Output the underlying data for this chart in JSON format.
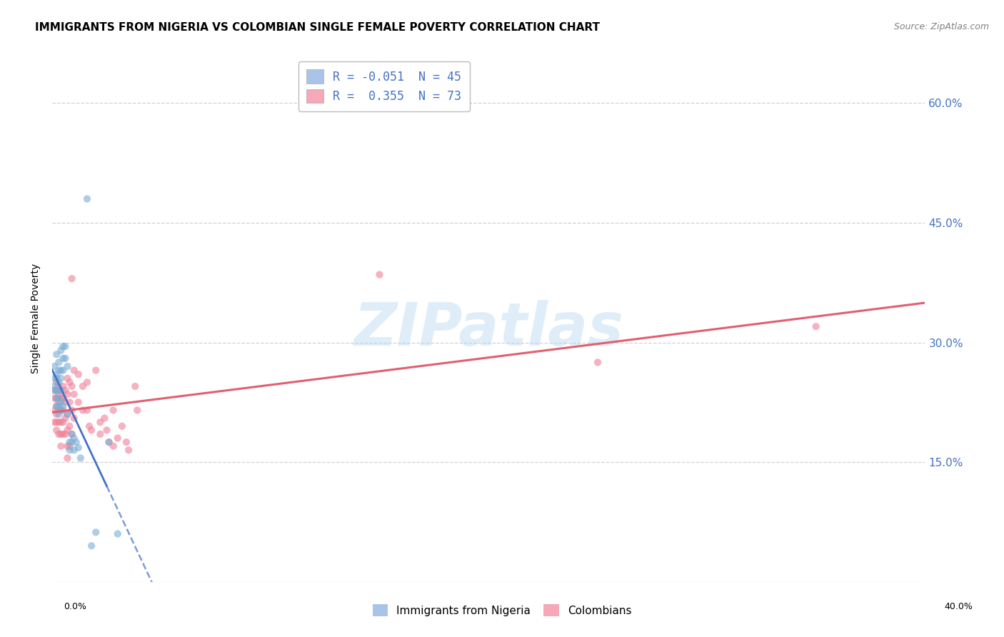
{
  "title": "IMMIGRANTS FROM NIGERIA VS COLOMBIAN SINGLE FEMALE POVERTY CORRELATION CHART",
  "source": "Source: ZipAtlas.com",
  "ylabel": "Single Female Poverty",
  "right_yticks": [
    "60.0%",
    "45.0%",
    "30.0%",
    "15.0%"
  ],
  "right_ytick_vals": [
    0.6,
    0.45,
    0.3,
    0.15
  ],
  "x_min": 0.0,
  "x_max": 0.4,
  "y_min": 0.0,
  "y_max": 0.66,
  "nigeria_color": "#7aadd4",
  "colombian_color": "#f08098",
  "nigeria_line_color": "#4472c4",
  "colombian_line_color": "#e06070",
  "watermark": "ZIPatlas",
  "background_color": "#ffffff",
  "grid_color": "#cccccc",
  "scatter_size": 55,
  "scatter_alpha": 0.6,
  "nigeria_scatter": [
    [
      0.001,
      0.27
    ],
    [
      0.001,
      0.255
    ],
    [
      0.001,
      0.245
    ],
    [
      0.001,
      0.24
    ],
    [
      0.002,
      0.285
    ],
    [
      0.002,
      0.26
    ],
    [
      0.002,
      0.255
    ],
    [
      0.002,
      0.24
    ],
    [
      0.002,
      0.23
    ],
    [
      0.002,
      0.22
    ],
    [
      0.003,
      0.275
    ],
    [
      0.003,
      0.265
    ],
    [
      0.003,
      0.25
    ],
    [
      0.003,
      0.24
    ],
    [
      0.003,
      0.23
    ],
    [
      0.003,
      0.22
    ],
    [
      0.003,
      0.21
    ],
    [
      0.004,
      0.29
    ],
    [
      0.004,
      0.265
    ],
    [
      0.004,
      0.255
    ],
    [
      0.004,
      0.24
    ],
    [
      0.004,
      0.225
    ],
    [
      0.004,
      0.215
    ],
    [
      0.005,
      0.295
    ],
    [
      0.005,
      0.28
    ],
    [
      0.005,
      0.265
    ],
    [
      0.005,
      0.22
    ],
    [
      0.006,
      0.295
    ],
    [
      0.006,
      0.28
    ],
    [
      0.007,
      0.27
    ],
    [
      0.007,
      0.21
    ],
    [
      0.008,
      0.175
    ],
    [
      0.008,
      0.165
    ],
    [
      0.009,
      0.185
    ],
    [
      0.009,
      0.175
    ],
    [
      0.01,
      0.18
    ],
    [
      0.01,
      0.165
    ],
    [
      0.011,
      0.175
    ],
    [
      0.012,
      0.168
    ],
    [
      0.013,
      0.155
    ],
    [
      0.016,
      0.48
    ],
    [
      0.018,
      0.045
    ],
    [
      0.02,
      0.062
    ],
    [
      0.026,
      0.175
    ],
    [
      0.03,
      0.06
    ]
  ],
  "colombian_scatter": [
    [
      0.001,
      0.24
    ],
    [
      0.001,
      0.23
    ],
    [
      0.001,
      0.215
    ],
    [
      0.001,
      0.2
    ],
    [
      0.002,
      0.25
    ],
    [
      0.002,
      0.24
    ],
    [
      0.002,
      0.23
    ],
    [
      0.002,
      0.22
    ],
    [
      0.002,
      0.21
    ],
    [
      0.002,
      0.2
    ],
    [
      0.002,
      0.19
    ],
    [
      0.003,
      0.245
    ],
    [
      0.003,
      0.235
    ],
    [
      0.003,
      0.225
    ],
    [
      0.003,
      0.215
    ],
    [
      0.003,
      0.2
    ],
    [
      0.003,
      0.185
    ],
    [
      0.004,
      0.24
    ],
    [
      0.004,
      0.23
    ],
    [
      0.004,
      0.215
    ],
    [
      0.004,
      0.2
    ],
    [
      0.004,
      0.185
    ],
    [
      0.004,
      0.17
    ],
    [
      0.005,
      0.245
    ],
    [
      0.005,
      0.23
    ],
    [
      0.005,
      0.215
    ],
    [
      0.005,
      0.2
    ],
    [
      0.005,
      0.185
    ],
    [
      0.006,
      0.24
    ],
    [
      0.006,
      0.225
    ],
    [
      0.006,
      0.205
    ],
    [
      0.006,
      0.185
    ],
    [
      0.007,
      0.255
    ],
    [
      0.007,
      0.235
    ],
    [
      0.007,
      0.21
    ],
    [
      0.007,
      0.19
    ],
    [
      0.007,
      0.17
    ],
    [
      0.007,
      0.155
    ],
    [
      0.008,
      0.25
    ],
    [
      0.008,
      0.225
    ],
    [
      0.008,
      0.195
    ],
    [
      0.008,
      0.17
    ],
    [
      0.009,
      0.38
    ],
    [
      0.009,
      0.245
    ],
    [
      0.009,
      0.215
    ],
    [
      0.009,
      0.185
    ],
    [
      0.01,
      0.265
    ],
    [
      0.01,
      0.235
    ],
    [
      0.01,
      0.205
    ],
    [
      0.012,
      0.26
    ],
    [
      0.012,
      0.225
    ],
    [
      0.014,
      0.245
    ],
    [
      0.014,
      0.215
    ],
    [
      0.016,
      0.25
    ],
    [
      0.016,
      0.215
    ],
    [
      0.017,
      0.195
    ],
    [
      0.018,
      0.19
    ],
    [
      0.02,
      0.265
    ],
    [
      0.022,
      0.2
    ],
    [
      0.022,
      0.185
    ],
    [
      0.024,
      0.205
    ],
    [
      0.025,
      0.19
    ],
    [
      0.026,
      0.175
    ],
    [
      0.028,
      0.215
    ],
    [
      0.028,
      0.17
    ],
    [
      0.03,
      0.18
    ],
    [
      0.032,
      0.195
    ],
    [
      0.034,
      0.175
    ],
    [
      0.035,
      0.165
    ],
    [
      0.038,
      0.245
    ],
    [
      0.039,
      0.215
    ],
    [
      0.15,
      0.385
    ],
    [
      0.25,
      0.275
    ],
    [
      0.35,
      0.32
    ]
  ]
}
